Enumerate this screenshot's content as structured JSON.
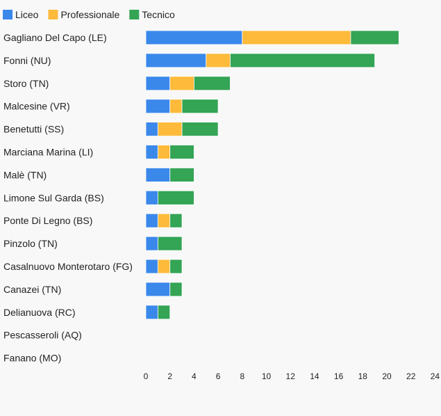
{
  "chart_data": {
    "type": "bar",
    "orientation": "horizontal",
    "stacked": true,
    "title": "",
    "xlabel": "",
    "ylabel": "",
    "xlim": [
      0,
      24
    ],
    "x_ticks": [
      0,
      2,
      4,
      6,
      8,
      10,
      12,
      14,
      16,
      18,
      20,
      22,
      24
    ],
    "grid": false,
    "legend_position": "top-left",
    "categories": [
      "Gagliano Del Capo (LE)",
      "Fonni (NU)",
      "Storo (TN)",
      "Malcesine (VR)",
      "Benetutti (SS)",
      "Marciana Marina (LI)",
      "Malè (TN)",
      "Limone Sul Garda (BS)",
      "Ponte Di Legno (BS)",
      "Pinzolo (TN)",
      "Casalnuovo Monterotaro (FG)",
      "Canazei (TN)",
      "Delianuova (RC)",
      "Pescasseroli (AQ)",
      "Fanano (MO)"
    ],
    "series": [
      {
        "name": "Liceo",
        "color": "#3b88eb",
        "values": [
          8,
          5,
          2,
          2,
          1,
          1,
          2,
          1,
          1,
          1,
          1,
          2,
          1,
          0,
          0
        ]
      },
      {
        "name": "Professionale",
        "color": "#fdba3b",
        "values": [
          9,
          2,
          2,
          1,
          2,
          1,
          0,
          0,
          1,
          0,
          1,
          0,
          0,
          0,
          0
        ]
      },
      {
        "name": "Tecnico",
        "color": "#34a455",
        "values": [
          4,
          12,
          3,
          3,
          3,
          2,
          2,
          3,
          1,
          2,
          1,
          1,
          1,
          0,
          0
        ]
      }
    ]
  }
}
